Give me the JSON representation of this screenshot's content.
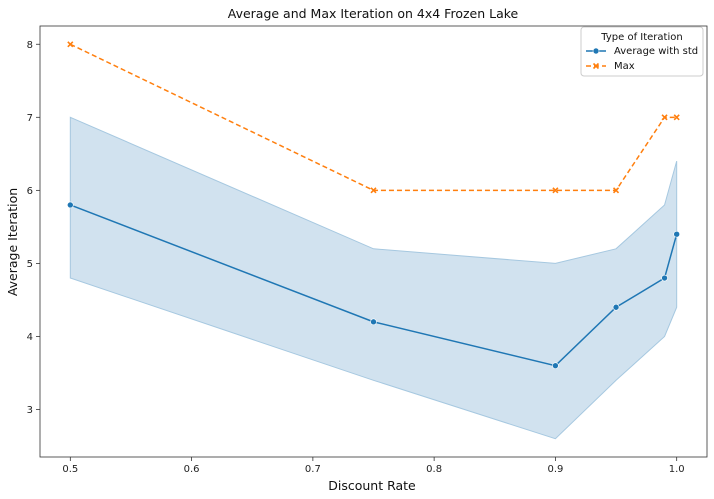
{
  "chart_data": {
    "type": "line",
    "title": "Average and Max Iteration on 4x4 Frozen Lake",
    "xlabel": "Discount Rate",
    "ylabel": "Average Iteration",
    "xlim": [
      0.475,
      1.025
    ],
    "ylim": [
      2.35,
      8.25
    ],
    "xticks": [
      0.5,
      0.6,
      0.7,
      0.8,
      0.9,
      1.0
    ],
    "xtick_labels": [
      "0.5",
      "0.6",
      "0.7",
      "0.8",
      "0.9",
      "1.0"
    ],
    "yticks": [
      3,
      4,
      5,
      6,
      7,
      8
    ],
    "ytick_labels": [
      "3",
      "4",
      "5",
      "6",
      "7",
      "8"
    ],
    "x": [
      0.5,
      0.75,
      0.9,
      0.95,
      0.99,
      1.0
    ],
    "series": [
      {
        "name": "Average with std",
        "values": [
          5.8,
          4.2,
          3.6,
          4.4,
          4.8,
          5.4
        ],
        "lower": [
          4.8,
          3.4,
          2.6,
          3.4,
          4.0,
          4.4
        ],
        "upper": [
          7.0,
          5.2,
          5.0,
          5.2,
          5.8,
          6.4
        ],
        "color": "#1f77b4",
        "band_color": "#a6c8e0",
        "marker": "circle",
        "linestyle": "solid"
      },
      {
        "name": "Max",
        "values": [
          8,
          6,
          6,
          6,
          7,
          7
        ],
        "color": "#ff7f0e",
        "marker": "x",
        "linestyle": "dashed"
      }
    ],
    "legend": {
      "title": "Type of Iteration",
      "position": "top-right"
    },
    "grid": false
  }
}
